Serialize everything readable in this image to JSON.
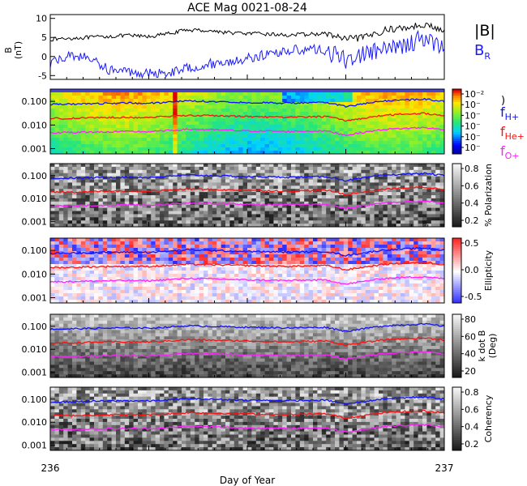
{
  "title": "ACE Mag 0021-08-24",
  "xlabel": "Day of Year",
  "x_ticks": [
    "236",
    "237"
  ],
  "colors": {
    "bmag": "#000000",
    "br": "#1a1aff",
    "h": "#1010ff",
    "he": "#ff1010",
    "o": "#ff20ff"
  },
  "chart_data": [
    {
      "type": "line",
      "name": "field",
      "ylabel": "B",
      "yunit": "(nT)",
      "ylim": [
        -6,
        11
      ],
      "yticks": [
        "10",
        "5",
        "0",
        "-5"
      ],
      "x": [
        236.0,
        236.05,
        236.1,
        236.15,
        236.2,
        236.25,
        236.3,
        236.35,
        236.4,
        236.45,
        236.5,
        236.55,
        236.6,
        236.65,
        236.7,
        236.75,
        236.8,
        236.85,
        236.9,
        236.95,
        237.0
      ],
      "series": [
        {
          "name": "|B|",
          "values": [
            4.5,
            4.8,
            5.0,
            5.3,
            5.5,
            5.2,
            6.0,
            7.0,
            6.8,
            6.3,
            6.0,
            5.9,
            5.6,
            5.8,
            6.0,
            4.5,
            5.0,
            7.0,
            7.5,
            8.5,
            6.5
          ]
        },
        {
          "name": "B",
          "sub": "R",
          "values": [
            -2.0,
            0.5,
            -0.5,
            -3.5,
            -4.0,
            -4.5,
            -4.2,
            -3.0,
            -2.0,
            -1.5,
            -0.5,
            0.5,
            1.5,
            2.0,
            1.5,
            -1.0,
            1.0,
            1.5,
            3.0,
            5.0,
            2.0
          ]
        }
      ]
    },
    {
      "type": "heatmap",
      "name": "power",
      "cbar_ticks": [
        "10⁻²",
        "10⁻",
        "10⁻",
        "10⁻",
        "10⁻",
        "10⁻"
      ],
      "cbar_close": ")",
      "legend": [
        {
          "main": "f",
          "sub": "H+"
        },
        {
          "main": "f",
          "sub": "He+"
        },
        {
          "main": "f",
          "sub": "O+"
        }
      ]
    },
    {
      "type": "heatmap",
      "name": "polarization",
      "cbar_ticks": [
        "0.8",
        "0.6",
        "0.4",
        "0.2"
      ],
      "cbar_label": "% Polarization"
    },
    {
      "type": "heatmap",
      "name": "ellipticity",
      "cbar_ticks": [
        "0.5",
        "0.0",
        "-0.5"
      ],
      "cbar_label": "Ellipticity"
    },
    {
      "type": "heatmap",
      "name": "kdotb",
      "cbar_ticks": [
        "80",
        "60",
        "40",
        "20"
      ],
      "cbar_label": "k dot B",
      "cbar_label2": "(Deg)"
    },
    {
      "type": "heatmap",
      "name": "coherency",
      "cbar_ticks": [
        "0.8",
        "0.6",
        "0.4",
        "0.2"
      ],
      "cbar_label": "Coherency"
    }
  ],
  "freq_axis": {
    "ylim": [
      0.0006,
      0.33
    ],
    "yticks": [
      0.1,
      0.01,
      0.001
    ],
    "ytick_labels": [
      "0.100",
      "0.010",
      "0.001"
    ]
  },
  "gyro_lines": {
    "x": [
      236.0,
      236.05,
      236.1,
      236.15,
      236.2,
      236.25,
      236.3,
      236.35,
      236.4,
      236.45,
      236.5,
      236.55,
      236.6,
      236.65,
      236.7,
      236.75,
      236.8,
      236.85,
      236.9,
      236.95,
      237.0
    ],
    "H+": [
      0.075,
      0.077,
      0.08,
      0.083,
      0.085,
      0.083,
      0.092,
      0.105,
      0.1,
      0.095,
      0.09,
      0.088,
      0.085,
      0.087,
      0.09,
      0.06,
      0.08,
      0.105,
      0.115,
      0.125,
      0.1
    ],
    "He+": [
      0.019,
      0.019,
      0.02,
      0.021,
      0.021,
      0.021,
      0.023,
      0.026,
      0.025,
      0.024,
      0.023,
      0.022,
      0.021,
      0.022,
      0.023,
      0.015,
      0.02,
      0.026,
      0.029,
      0.031,
      0.025
    ],
    "O+": [
      0.0047,
      0.0048,
      0.005,
      0.0052,
      0.0053,
      0.0052,
      0.0058,
      0.0066,
      0.0063,
      0.006,
      0.0056,
      0.0055,
      0.0053,
      0.0055,
      0.0056,
      0.0037,
      0.005,
      0.0066,
      0.0072,
      0.0078,
      0.0062
    ]
  }
}
